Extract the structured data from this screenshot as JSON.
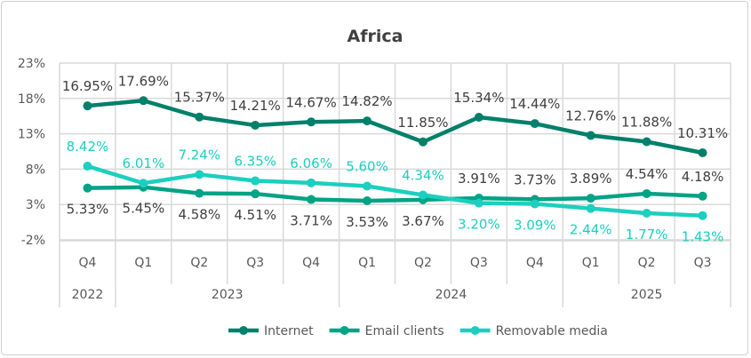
{
  "chart_data": {
    "type": "line",
    "title": "Africa",
    "xlabel": "",
    "ylabel": "",
    "ylim": [
      -2,
      23
    ],
    "yticks": [
      "23%",
      "18%",
      "13%",
      "8%",
      "3%",
      "-2%"
    ],
    "ytick_values": [
      23,
      18,
      13,
      8,
      3,
      -2
    ],
    "grid": true,
    "legend_position": "bottom",
    "categories": [
      "Q4",
      "Q1",
      "Q2",
      "Q3",
      "Q4",
      "Q1",
      "Q2",
      "Q3",
      "Q4",
      "Q1",
      "Q2",
      "Q3"
    ],
    "year_groups": [
      {
        "label": "2022",
        "span": 1
      },
      {
        "label": "2023",
        "span": 4
      },
      {
        "label": "2024",
        "span": 4
      },
      {
        "label": "2025",
        "span": 3
      }
    ],
    "series": [
      {
        "name": "Internet",
        "color": "#00806A",
        "label_color": "#404040",
        "values": [
          16.95,
          17.69,
          15.37,
          14.21,
          14.67,
          14.82,
          11.85,
          15.34,
          14.44,
          12.76,
          11.88,
          10.31
        ],
        "labels": [
          "16.95%",
          "17.69%",
          "15.37%",
          "14.21%",
          "14.67%",
          "14.82%",
          "11.85%",
          "15.34%",
          "14.44%",
          "12.76%",
          "11.88%",
          "10.31%"
        ]
      },
      {
        "name": "Email clients",
        "color": "#00A385",
        "label_color": "#404040",
        "values": [
          5.33,
          5.45,
          4.58,
          4.51,
          3.71,
          3.53,
          3.67,
          3.91,
          3.73,
          3.89,
          4.54,
          4.18
        ],
        "labels": [
          "5.33%",
          "5.45%",
          "4.58%",
          "4.51%",
          "3.71%",
          "3.53%",
          "3.67%",
          "3.91%",
          "3.73%",
          "3.89%",
          "4.54%",
          "4.18%"
        ]
      },
      {
        "name": "Removable media",
        "color": "#1CCFBF",
        "label_color": "#1CCFBF",
        "values": [
          8.42,
          6.01,
          7.24,
          6.35,
          6.06,
          5.6,
          4.34,
          3.2,
          3.09,
          2.44,
          1.77,
          1.43
        ],
        "labels": [
          "8.42%",
          "6.01%",
          "7.24%",
          "6.35%",
          "6.06%",
          "5.60%",
          "4.34%",
          "3.20%",
          "3.09%",
          "2.44%",
          "1.77%",
          "1.43%"
        ]
      }
    ]
  }
}
